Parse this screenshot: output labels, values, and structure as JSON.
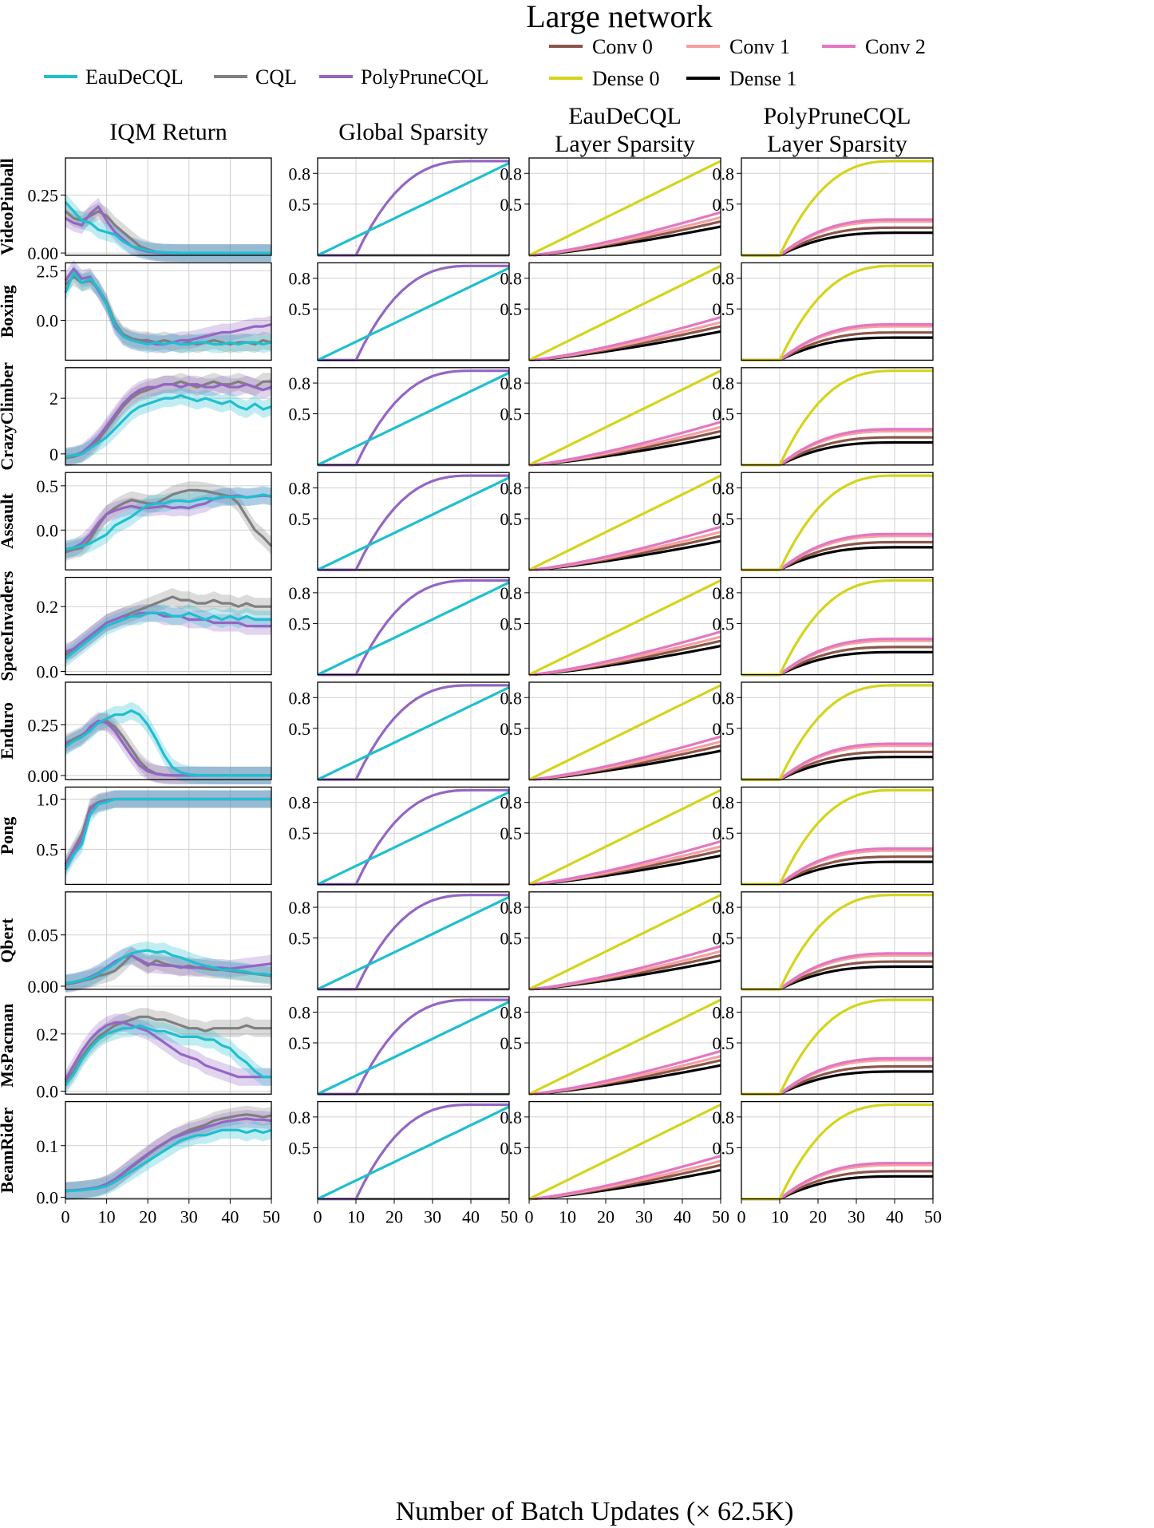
{
  "title": "Large network",
  "colors": {
    "EauDeCQL": "#1fbfd0",
    "CQL": "#7f7f7f",
    "PolyPruneCQL": "#9466c4",
    "Conv 0": "#8c564b",
    "Conv 1": "#f7a0a0",
    "Conv 2": "#e377c2",
    "Dense 0": "#d4d41c",
    "Dense 1": "#000000"
  },
  "legend_methods": [
    "EauDeCQL",
    "CQL",
    "PolyPruneCQL"
  ],
  "legend_layers": [
    "Conv 0",
    "Conv 1",
    "Conv 2",
    "Dense 0",
    "Dense 1"
  ],
  "column_titles": [
    [
      "IQM Return"
    ],
    [
      "Global Sparsity"
    ],
    [
      "EauDeCQL",
      "Layer Sparsity"
    ],
    [
      "PolyPruneCQL",
      "Layer Sparsity"
    ]
  ],
  "xlabel": "Number of Batch Updates (× 62.5K)",
  "chart_data": {
    "type": "line",
    "x_ticks": [
      0,
      10,
      20,
      30,
      40,
      50
    ],
    "xlim": [
      0,
      50
    ],
    "x": [
      0,
      2,
      4,
      6,
      8,
      10,
      12,
      14,
      16,
      18,
      20,
      22,
      24,
      26,
      28,
      30,
      32,
      34,
      36,
      38,
      40,
      42,
      44,
      46,
      48,
      50
    ],
    "sparsity_ticks": [
      0.5,
      0.8
    ],
    "sparsity_ylim": [
      0,
      0.95
    ],
    "sparsity_models": {
      "EauDeCQL": {
        "Dense 0": 0.92,
        "Conv 0": 0.33,
        "Conv 1": 0.37,
        "Conv 2": 0.42,
        "Dense 1": 0.28
      },
      "PolyPruneCQL": {
        "Dense 0": 0.92,
        "Conv 0": 0.27,
        "Conv 1": 0.33,
        "Conv 2": 0.35,
        "Dense 1": 0.22
      },
      "Global": {
        "EauDeCQL_final": 0.9,
        "PolyPruneCQL_final": 0.92,
        "PolyPruneCQL_start": 10,
        "PolyPruneCQL_end": 40
      }
    },
    "games": [
      {
        "name": "VideoPinball",
        "ylim": [
          -0.01,
          0.41
        ],
        "yticks": [
          0.0,
          0.25
        ],
        "tick_labels": [
          "0.00",
          "0.25"
        ],
        "series": {
          "EauDeCQL": [
            0.22,
            0.18,
            0.14,
            0.13,
            0.1,
            0.09,
            0.08,
            0.05,
            0.03,
            0.02,
            0.01,
            0.005,
            0.002,
            0.001,
            0.0,
            0.0,
            0.0,
            0.0,
            0.0,
            0.0,
            0.0,
            0.0,
            0.0,
            0.0,
            0.0,
            0.0
          ],
          "CQL": [
            0.18,
            0.15,
            0.14,
            0.16,
            0.18,
            0.16,
            0.12,
            0.09,
            0.06,
            0.03,
            0.015,
            0.005,
            0.002,
            0.001,
            0.0,
            0.0,
            0.0,
            0.0,
            0.0,
            0.0,
            0.0,
            0.0,
            0.0,
            0.0,
            0.0,
            0.0
          ],
          "PolyPruneCQL": [
            0.15,
            0.13,
            0.12,
            0.17,
            0.2,
            0.14,
            0.09,
            0.06,
            0.03,
            0.015,
            0.006,
            0.002,
            0.0,
            0.0,
            0.0,
            0.0,
            0.0,
            0.0,
            0.0,
            0.0,
            0.0,
            0.0,
            0.0,
            0.0,
            0.0,
            0.0
          ]
        }
      },
      {
        "name": "Boxing",
        "ylim": [
          -2.0,
          2.9
        ],
        "yticks": [
          0.0,
          2.5
        ],
        "tick_labels": [
          "0.0",
          "2.5"
        ],
        "series": {
          "EauDeCQL": [
            1.4,
            2.4,
            1.9,
            2.1,
            1.6,
            0.8,
            -0.2,
            -0.8,
            -1.0,
            -1.1,
            -1.2,
            -1.1,
            -1.2,
            -1.1,
            -1.2,
            -1.2,
            -1.1,
            -1.1,
            -1.2,
            -1.2,
            -1.1,
            -1.2,
            -1.1,
            -1.1,
            -1.2,
            -1.1
          ],
          "CQL": [
            1.8,
            2.2,
            1.9,
            2.0,
            1.6,
            0.9,
            -0.1,
            -0.7,
            -0.9,
            -1.0,
            -1.0,
            -1.1,
            -1.0,
            -1.1,
            -1.2,
            -1.1,
            -1.2,
            -1.1,
            -1.0,
            -1.1,
            -1.2,
            -1.1,
            -1.1,
            -1.2,
            -1.0,
            -1.1
          ],
          "PolyPruneCQL": [
            2.0,
            2.6,
            2.1,
            2.2,
            1.5,
            0.8,
            -0.3,
            -0.8,
            -1.0,
            -1.1,
            -1.1,
            -1.2,
            -1.2,
            -1.1,
            -1.0,
            -1.0,
            -0.9,
            -0.8,
            -0.7,
            -0.6,
            -0.6,
            -0.5,
            -0.4,
            -0.3,
            -0.3,
            -0.2
          ]
        }
      },
      {
        "name": "CrazyClimber",
        "ylim": [
          -0.4,
          3.1
        ],
        "yticks": [
          0,
          2
        ],
        "tick_labels": [
          "0",
          "2"
        ],
        "series": {
          "EauDeCQL": [
            -0.1,
            -0.05,
            0.0,
            0.2,
            0.4,
            0.6,
            0.9,
            1.2,
            1.5,
            1.7,
            1.8,
            1.9,
            2.0,
            2.0,
            2.1,
            2.0,
            1.9,
            2.0,
            1.9,
            1.8,
            1.9,
            1.7,
            1.6,
            1.8,
            1.6,
            1.7
          ],
          "CQL": [
            -0.15,
            -0.1,
            0.0,
            0.2,
            0.5,
            0.9,
            1.3,
            1.7,
            2.0,
            2.2,
            2.3,
            2.4,
            2.5,
            2.5,
            2.6,
            2.5,
            2.4,
            2.5,
            2.6,
            2.5,
            2.5,
            2.6,
            2.5,
            2.4,
            2.6,
            2.6
          ],
          "PolyPruneCQL": [
            -0.1,
            -0.05,
            0.05,
            0.3,
            0.6,
            1.0,
            1.4,
            1.8,
            2.1,
            2.3,
            2.4,
            2.4,
            2.5,
            2.5,
            2.4,
            2.5,
            2.5,
            2.4,
            2.4,
            2.5,
            2.4,
            2.4,
            2.5,
            2.4,
            2.3,
            2.4
          ]
        }
      },
      {
        "name": "Assault",
        "ylim": [
          -0.45,
          0.65
        ],
        "yticks": [
          0.0,
          0.5
        ],
        "tick_labels": [
          "0.0",
          "0.5"
        ],
        "series": {
          "EauDeCQL": [
            -0.22,
            -0.2,
            -0.18,
            -0.15,
            -0.1,
            -0.05,
            0.05,
            0.1,
            0.15,
            0.22,
            0.28,
            0.3,
            0.3,
            0.33,
            0.33,
            0.32,
            0.34,
            0.36,
            0.35,
            0.38,
            0.37,
            0.38,
            0.37,
            0.38,
            0.4,
            0.38
          ],
          "CQL": [
            -0.25,
            -0.22,
            -0.2,
            -0.1,
            0.05,
            0.18,
            0.25,
            0.3,
            0.34,
            0.32,
            0.3,
            0.3,
            0.35,
            0.4,
            0.43,
            0.45,
            0.45,
            0.44,
            0.42,
            0.4,
            0.38,
            0.3,
            0.15,
            0.0,
            -0.08,
            -0.18
          ],
          "PolyPruneCQL": [
            -0.22,
            -0.2,
            -0.15,
            -0.05,
            0.08,
            0.18,
            0.22,
            0.25,
            0.27,
            0.25,
            0.25,
            0.26,
            0.27,
            0.25,
            0.26,
            0.25,
            0.28,
            0.3,
            0.35,
            0.37,
            0.38,
            0.39,
            0.37,
            0.38,
            0.39,
            0.38
          ]
        }
      },
      {
        "name": "SpaceInvaders",
        "ylim": [
          -0.01,
          0.29
        ],
        "yticks": [
          0.0,
          0.2
        ],
        "tick_labels": [
          "0.0",
          "0.2"
        ],
        "series": {
          "EauDeCQL": [
            0.04,
            0.06,
            0.08,
            0.1,
            0.12,
            0.14,
            0.15,
            0.16,
            0.17,
            0.17,
            0.18,
            0.18,
            0.18,
            0.17,
            0.17,
            0.18,
            0.17,
            0.16,
            0.17,
            0.16,
            0.17,
            0.16,
            0.17,
            0.16,
            0.16,
            0.16
          ],
          "CQL": [
            0.05,
            0.07,
            0.09,
            0.11,
            0.13,
            0.15,
            0.16,
            0.17,
            0.18,
            0.19,
            0.2,
            0.21,
            0.22,
            0.23,
            0.22,
            0.22,
            0.21,
            0.21,
            0.22,
            0.21,
            0.21,
            0.2,
            0.21,
            0.2,
            0.2,
            0.2
          ],
          "PolyPruneCQL": [
            0.06,
            0.07,
            0.09,
            0.11,
            0.13,
            0.15,
            0.16,
            0.17,
            0.17,
            0.18,
            0.18,
            0.18,
            0.17,
            0.17,
            0.17,
            0.16,
            0.16,
            0.16,
            0.15,
            0.15,
            0.15,
            0.15,
            0.14,
            0.14,
            0.14,
            0.14
          ]
        }
      },
      {
        "name": "Enduro",
        "ylim": [
          -0.02,
          0.46
        ],
        "yticks": [
          0.0,
          0.25
        ],
        "tick_labels": [
          "0.00",
          "0.25"
        ],
        "series": {
          "EauDeCQL": [
            0.14,
            0.17,
            0.19,
            0.22,
            0.26,
            0.28,
            0.3,
            0.3,
            0.32,
            0.3,
            0.25,
            0.18,
            0.1,
            0.04,
            0.015,
            0.005,
            0.002,
            0.001,
            0.0,
            0.0,
            0.0,
            0.0,
            0.0,
            0.0,
            0.0,
            0.0
          ],
          "CQL": [
            0.16,
            0.18,
            0.2,
            0.23,
            0.26,
            0.27,
            0.24,
            0.19,
            0.13,
            0.07,
            0.03,
            0.01,
            0.003,
            0.001,
            0.0,
            0.0,
            0.0,
            0.0,
            0.0,
            0.0,
            0.0,
            0.0,
            0.0,
            0.0,
            0.0,
            0.0
          ],
          "PolyPruneCQL": [
            0.15,
            0.17,
            0.19,
            0.24,
            0.27,
            0.26,
            0.22,
            0.16,
            0.1,
            0.05,
            0.02,
            0.008,
            0.002,
            0.0,
            0.0,
            0.0,
            0.0,
            0.0,
            0.0,
            0.0,
            0.0,
            0.0,
            0.0,
            0.0,
            0.0,
            0.0
          ]
        }
      },
      {
        "name": "Pong",
        "ylim": [
          0.15,
          1.12
        ],
        "yticks": [
          0.5,
          1.0
        ],
        "tick_labels": [
          "0.5",
          "1.0"
        ],
        "series": {
          "EauDeCQL": [
            0.3,
            0.45,
            0.55,
            0.85,
            0.95,
            0.97,
            1.0,
            1.0,
            1.0,
            1.0,
            1.0,
            1.0,
            1.0,
            1.0,
            1.0,
            1.0,
            1.0,
            1.0,
            1.0,
            1.0,
            1.0,
            1.0,
            1.0,
            1.0,
            1.0,
            1.0
          ],
          "CQL": [
            0.35,
            0.5,
            0.65,
            0.92,
            0.97,
            0.99,
            1.0,
            1.0,
            1.0,
            1.0,
            1.0,
            1.0,
            1.0,
            1.0,
            1.0,
            1.0,
            1.0,
            1.0,
            1.0,
            1.0,
            1.0,
            1.0,
            1.0,
            1.0,
            1.0,
            1.0
          ],
          "PolyPruneCQL": [
            0.33,
            0.48,
            0.6,
            0.9,
            0.96,
            0.98,
            1.0,
            1.0,
            1.0,
            1.0,
            1.0,
            1.0,
            1.0,
            1.0,
            1.0,
            1.0,
            1.0,
            1.0,
            1.0,
            1.0,
            1.0,
            1.0,
            1.0,
            1.0,
            1.0,
            1.0
          ]
        }
      },
      {
        "name": "Qbert",
        "ylim": [
          -0.003,
          0.092
        ],
        "yticks": [
          0.0,
          0.05
        ],
        "tick_labels": [
          "0.00",
          "0.05"
        ],
        "series": {
          "EauDeCQL": [
            0.003,
            0.004,
            0.006,
            0.008,
            0.012,
            0.017,
            0.022,
            0.028,
            0.032,
            0.034,
            0.035,
            0.033,
            0.034,
            0.03,
            0.028,
            0.025,
            0.022,
            0.02,
            0.018,
            0.016,
            0.016,
            0.015,
            0.014,
            0.012,
            0.012,
            0.011
          ],
          "CQL": [
            0.002,
            0.003,
            0.005,
            0.007,
            0.01,
            0.012,
            0.015,
            0.022,
            0.03,
            0.025,
            0.02,
            0.025,
            0.022,
            0.02,
            0.018,
            0.02,
            0.018,
            0.017,
            0.016,
            0.016,
            0.015,
            0.014,
            0.013,
            0.012,
            0.011,
            0.01
          ],
          "PolyPruneCQL": [
            0.003,
            0.004,
            0.006,
            0.009,
            0.013,
            0.018,
            0.024,
            0.028,
            0.03,
            0.026,
            0.022,
            0.021,
            0.02,
            0.02,
            0.019,
            0.018,
            0.018,
            0.019,
            0.018,
            0.018,
            0.017,
            0.018,
            0.019,
            0.02,
            0.021,
            0.022
          ]
        }
      },
      {
        "name": "MsPacman",
        "ylim": [
          -0.01,
          0.33
        ],
        "yticks": [
          0.0,
          0.2
        ],
        "tick_labels": [
          "0.0",
          "0.2"
        ],
        "series": {
          "EauDeCQL": [
            0.02,
            0.06,
            0.11,
            0.15,
            0.18,
            0.2,
            0.21,
            0.22,
            0.22,
            0.23,
            0.22,
            0.21,
            0.21,
            0.2,
            0.19,
            0.19,
            0.19,
            0.18,
            0.18,
            0.16,
            0.15,
            0.12,
            0.1,
            0.07,
            0.05,
            0.05
          ],
          "CQL": [
            0.03,
            0.07,
            0.12,
            0.16,
            0.19,
            0.21,
            0.23,
            0.24,
            0.25,
            0.26,
            0.26,
            0.25,
            0.25,
            0.24,
            0.23,
            0.22,
            0.22,
            0.21,
            0.22,
            0.22,
            0.22,
            0.22,
            0.23,
            0.22,
            0.22,
            0.22
          ],
          "PolyPruneCQL": [
            0.04,
            0.09,
            0.14,
            0.18,
            0.21,
            0.23,
            0.24,
            0.24,
            0.23,
            0.22,
            0.21,
            0.19,
            0.17,
            0.15,
            0.13,
            0.12,
            0.11,
            0.09,
            0.08,
            0.07,
            0.06,
            0.05,
            0.05,
            0.05,
            0.05,
            0.05
          ]
        }
      },
      {
        "name": "BeamRider",
        "ylim": [
          -0.003,
          0.185
        ],
        "yticks": [
          0.0,
          0.1
        ],
        "tick_labels": [
          "0.0",
          "0.1"
        ],
        "series": {
          "EauDeCQL": [
            0.012,
            0.013,
            0.014,
            0.016,
            0.018,
            0.022,
            0.03,
            0.04,
            0.05,
            0.06,
            0.07,
            0.08,
            0.09,
            0.1,
            0.11,
            0.115,
            0.12,
            0.12,
            0.125,
            0.13,
            0.13,
            0.13,
            0.125,
            0.13,
            0.125,
            0.13
          ],
          "CQL": [
            0.012,
            0.013,
            0.015,
            0.017,
            0.02,
            0.025,
            0.034,
            0.046,
            0.058,
            0.07,
            0.082,
            0.094,
            0.104,
            0.115,
            0.122,
            0.13,
            0.135,
            0.14,
            0.148,
            0.152,
            0.155,
            0.158,
            0.16,
            0.158,
            0.155,
            0.158
          ],
          "PolyPruneCQL": [
            0.013,
            0.014,
            0.015,
            0.017,
            0.02,
            0.026,
            0.035,
            0.047,
            0.06,
            0.072,
            0.084,
            0.095,
            0.105,
            0.114,
            0.12,
            0.126,
            0.13,
            0.135,
            0.14,
            0.145,
            0.148,
            0.15,
            0.152,
            0.15,
            0.15,
            0.148
          ]
        }
      }
    ]
  }
}
